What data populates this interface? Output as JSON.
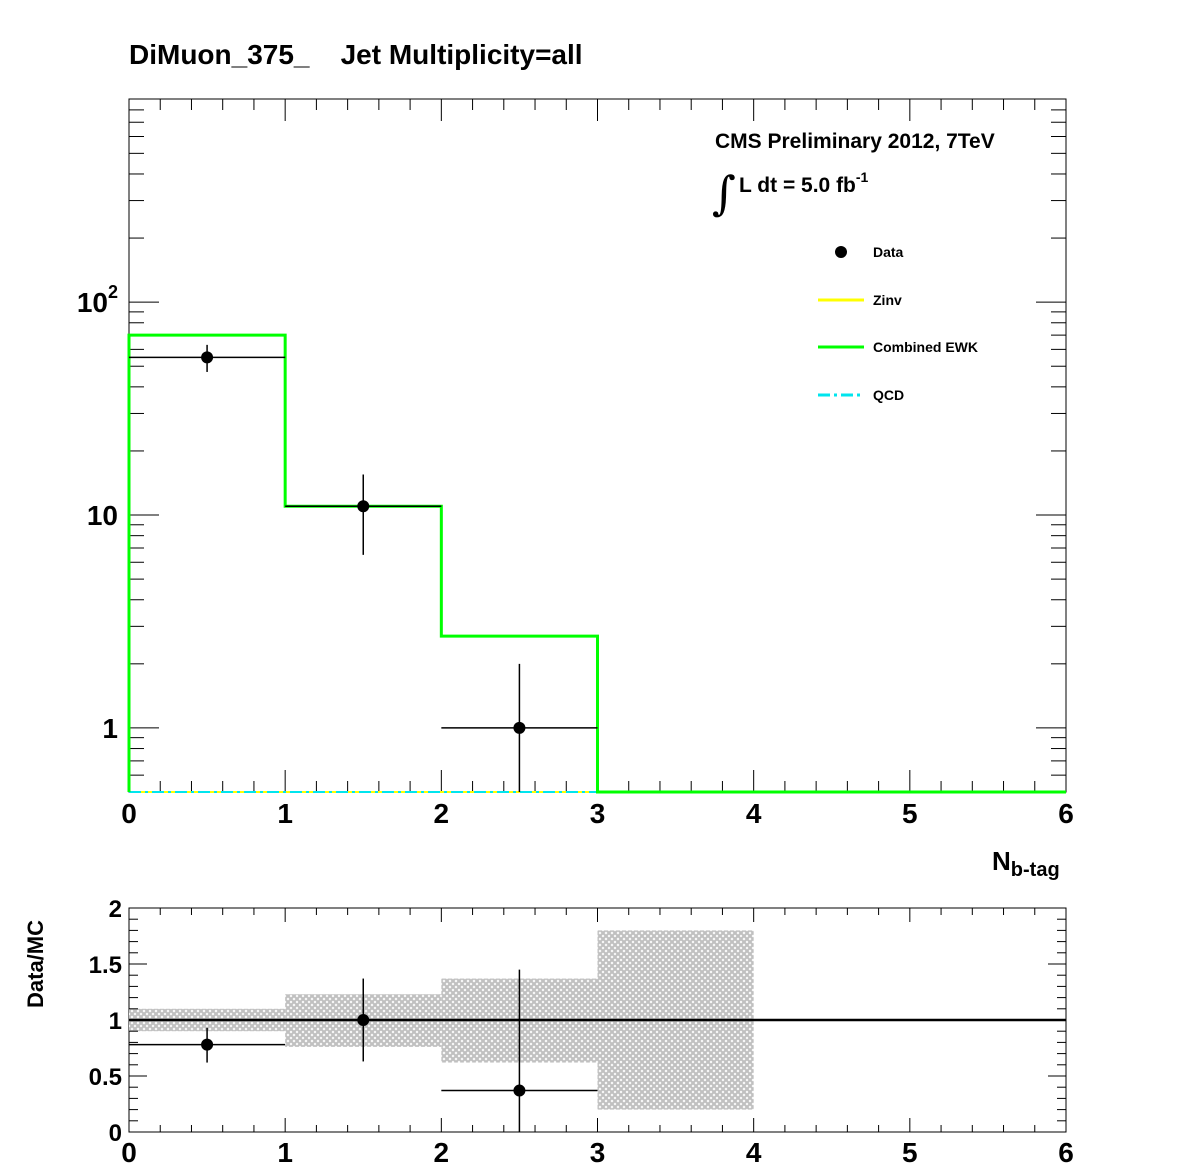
{
  "title": "DiMuon_375_    Jet Multiplicity=all",
  "annotation": {
    "line1": "CMS Preliminary 2012, 7TeV",
    "integral_symbol": "∫",
    "lumi_text": "L dt = 5.0 fb",
    "lumi_exp": "-1"
  },
  "xlabel": {
    "main": "N",
    "sub": "b-tag"
  },
  "ratio_ylabel": "Data/MC",
  "chart_data": [
    {
      "type": "histogram",
      "panel": "main",
      "xlim": [
        0,
        6
      ],
      "ylim": [
        0.5,
        900
      ],
      "log_y": true,
      "grid": false,
      "legend_position": "top-right",
      "x_tick_labels": [
        "0",
        "1",
        "2",
        "3",
        "4",
        "5",
        "6"
      ],
      "y_tick_labels": [
        {
          "value": 1,
          "label": "1"
        },
        {
          "value": 10,
          "label": "10"
        },
        {
          "value": 100,
          "label": "10",
          "exp": "2"
        }
      ],
      "bin_edges": [
        0,
        1,
        2,
        3,
        4,
        5,
        6
      ],
      "series": [
        {
          "name": "Data",
          "style": "points",
          "color": "#000000",
          "x": [
            0.5,
            1.5,
            2.5
          ],
          "y": [
            55,
            11,
            1
          ],
          "y_err_low": [
            8,
            4.5,
            0.9
          ],
          "y_err_high": [
            8,
            4.5,
            1.0
          ],
          "x_err": [
            0.5,
            0.5,
            0.5
          ]
        },
        {
          "name": "Zinv",
          "style": "step",
          "color": "#ffff00",
          "values": [
            0,
            0,
            0,
            0,
            0,
            0
          ]
        },
        {
          "name": "Combined EWK",
          "style": "step",
          "color": "#00ff00",
          "values": [
            70,
            11,
            2.7,
            0,
            0,
            0
          ]
        },
        {
          "name": "QCD",
          "style": "dash-dot",
          "color": "#00e5ee",
          "values": [
            0,
            0,
            0,
            0,
            0,
            0
          ]
        }
      ]
    },
    {
      "type": "ratio",
      "panel": "ratio",
      "xlim": [
        0,
        6
      ],
      "ylim": [
        0,
        2
      ],
      "x_tick_labels": [
        "0",
        "1",
        "2",
        "3",
        "4",
        "5",
        "6"
      ],
      "y_tick_labels": [
        "0",
        "0.5",
        "1",
        "1.5",
        "2"
      ],
      "y_tick_values": [
        0,
        0.5,
        1,
        1.5,
        2
      ],
      "reference_line": 1,
      "uncertainty_band": {
        "color": "#c0c0c0",
        "bins": [
          {
            "x0": 0,
            "x1": 1,
            "low": 0.9,
            "high": 1.1
          },
          {
            "x0": 1,
            "x1": 2,
            "low": 0.76,
            "high": 1.23
          },
          {
            "x0": 2,
            "x1": 3,
            "low": 0.62,
            "high": 1.37
          },
          {
            "x0": 3,
            "x1": 4,
            "low": 0.2,
            "high": 1.8
          }
        ]
      },
      "points": [
        {
          "x": 0.5,
          "y": 0.78,
          "err_low": 0.16,
          "err_high": 0.15,
          "x_err": 0.5
        },
        {
          "x": 1.5,
          "y": 1.0,
          "err_low": 0.37,
          "err_high": 0.37,
          "x_err": 0
        },
        {
          "x": 2.5,
          "y": 0.37,
          "err_low": 0.37,
          "err_high": 1.08,
          "x_err": 0.5
        }
      ]
    }
  ]
}
